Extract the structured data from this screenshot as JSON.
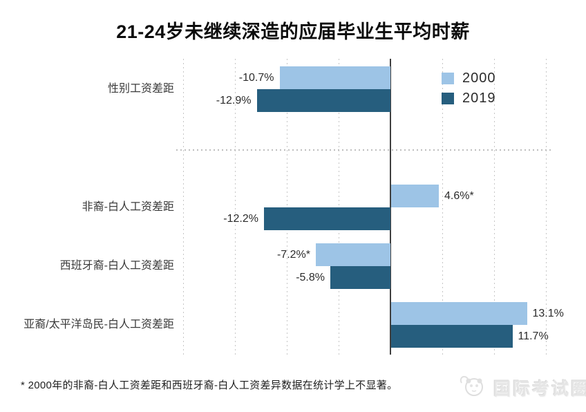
{
  "title": "21-24岁未继续深造的应届毕业生平均时薪",
  "chart_data": {
    "type": "bar",
    "orientation": "horizontal",
    "title": "21-24岁未继续深造的应届毕业生平均时薪",
    "categories": [
      "性别工资差距",
      "非裔-白人工资差距",
      "西班牙裔-白人工资差距",
      "亚裔/太平洋岛民-白人工资差距"
    ],
    "series": [
      {
        "name": "2000",
        "color": "#9dc4e6",
        "values": [
          -10.7,
          4.6,
          -7.2,
          13.1
        ],
        "value_labels": [
          "-10.7%",
          "4.6%*",
          "-7.2%*",
          "13.1%"
        ]
      },
      {
        "name": "2019",
        "color": "#265e7e",
        "values": [
          -12.9,
          -12.2,
          -5.8,
          11.7
        ],
        "value_labels": [
          "-12.9%",
          "-12.2%",
          "-5.8%",
          "11.7%"
        ]
      }
    ],
    "unit": "%",
    "xlim": [
      -20,
      15
    ],
    "grid_step": 5,
    "grid": "vertical-dotted",
    "zero_axis": true,
    "legend_position": "top-right",
    "group_separator_after_category_index": 0
  },
  "footnote": "* 2000年的非裔-白人工资差距和西班牙裔-白人工资差异数据在统计学上不显著。",
  "watermark": {
    "text": "国际考试圈",
    "icon": "panda-logo-icon"
  }
}
